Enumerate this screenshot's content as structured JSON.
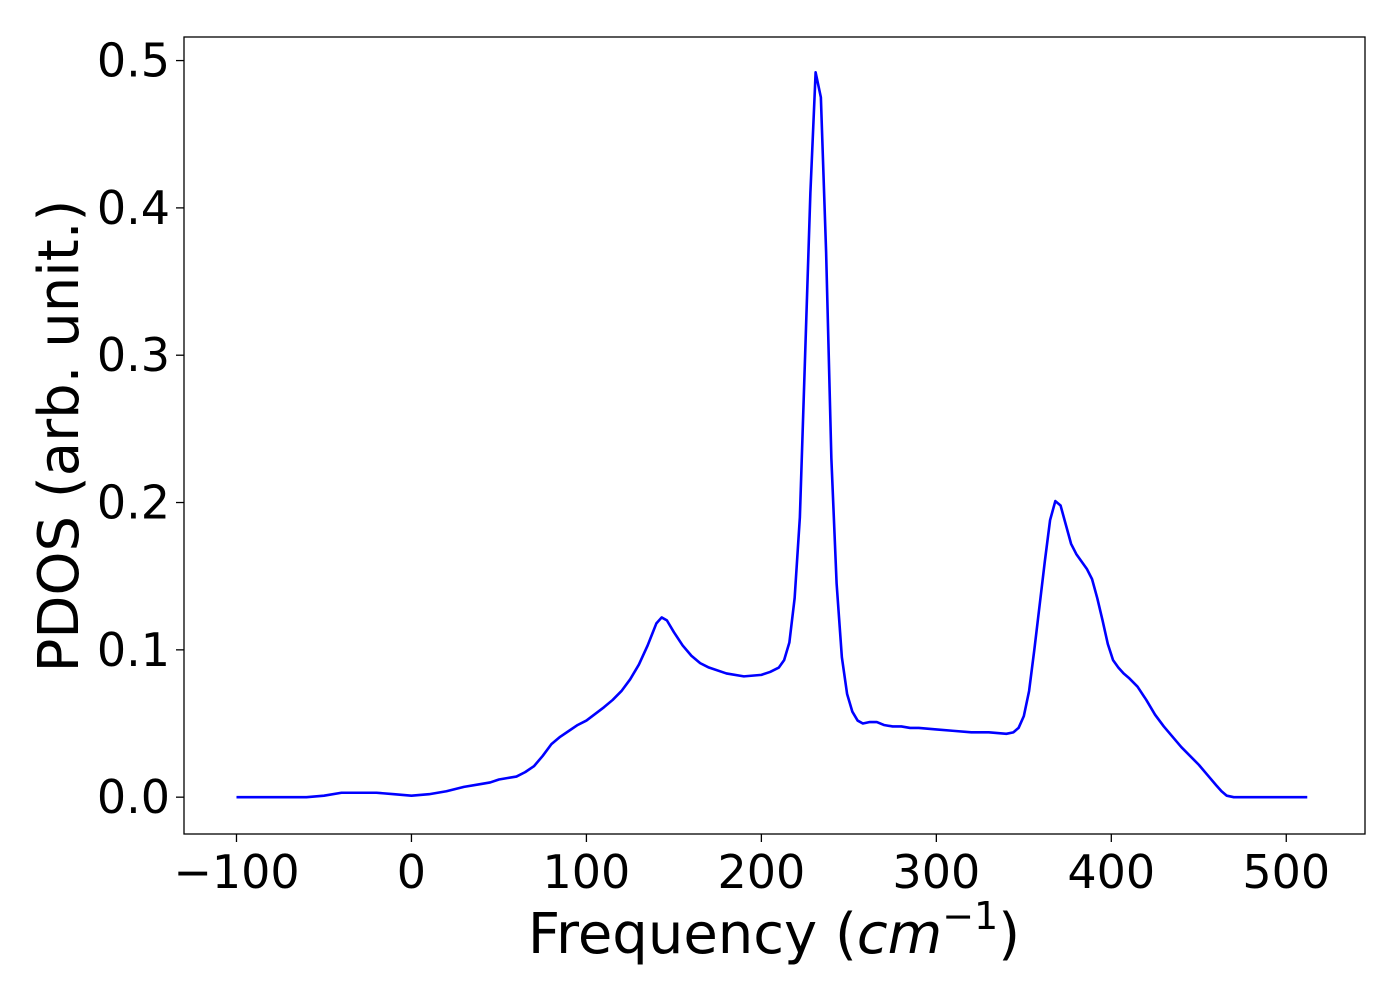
{
  "chart_data": {
    "type": "line",
    "title": "",
    "xlabel": "Frequency ",
    "xlabel_math": {
      "open": "(",
      "var": "cm",
      "sup": "−1",
      "close": ")"
    },
    "ylabel": "PDOS (arb. unit.)",
    "xlim": [
      -130,
      545
    ],
    "ylim": [
      -0.025,
      0.516
    ],
    "xticks": [
      -100,
      0,
      100,
      200,
      300,
      400,
      500
    ],
    "xtick_labels": [
      "−100",
      "0",
      "100",
      "200",
      "300",
      "400",
      "500"
    ],
    "yticks": [
      0.0,
      0.1,
      0.2,
      0.3,
      0.4,
      0.5
    ],
    "ytick_labels": [
      "0.0",
      "0.1",
      "0.2",
      "0.3",
      "0.4",
      "0.5"
    ],
    "grid": false,
    "series": [
      {
        "color": "#0000ff",
        "x": [
          -100,
          -60,
          -50,
          -40,
          -35,
          -25,
          -20,
          -10,
          0,
          10,
          20,
          30,
          40,
          45,
          50,
          55,
          60,
          65,
          70,
          75,
          80,
          85,
          90,
          95,
          100,
          110,
          115,
          120,
          125,
          130,
          135,
          140,
          143,
          146,
          150,
          155,
          160,
          165,
          170,
          180,
          190,
          200,
          205,
          210,
          213,
          216,
          219,
          222,
          225,
          228,
          231,
          234,
          237,
          240,
          243,
          246,
          249,
          252,
          255,
          258,
          262,
          266,
          270,
          275,
          280,
          285,
          290,
          300,
          310,
          320,
          330,
          340,
          344,
          347,
          350,
          353,
          356,
          359,
          362,
          365,
          368,
          371,
          374,
          377,
          380,
          383,
          386,
          389,
          392,
          395,
          398,
          401,
          404,
          407,
          410,
          415,
          420,
          425,
          430,
          440,
          450,
          455,
          460,
          463,
          466,
          470,
          480,
          500,
          512
        ],
        "y": [
          0.0,
          0.0,
          0.001,
          0.003,
          0.003,
          0.003,
          0.003,
          0.002,
          0.001,
          0.002,
          0.004,
          0.007,
          0.009,
          0.01,
          0.012,
          0.013,
          0.014,
          0.017,
          0.021,
          0.028,
          0.036,
          0.041,
          0.045,
          0.049,
          0.052,
          0.061,
          0.066,
          0.072,
          0.08,
          0.09,
          0.103,
          0.118,
          0.122,
          0.12,
          0.112,
          0.103,
          0.096,
          0.091,
          0.088,
          0.084,
          0.082,
          0.083,
          0.085,
          0.088,
          0.093,
          0.105,
          0.135,
          0.19,
          0.3,
          0.41,
          0.492,
          0.475,
          0.37,
          0.23,
          0.145,
          0.095,
          0.07,
          0.058,
          0.052,
          0.05,
          0.051,
          0.051,
          0.049,
          0.048,
          0.048,
          0.047,
          0.047,
          0.046,
          0.045,
          0.044,
          0.044,
          0.043,
          0.044,
          0.047,
          0.055,
          0.072,
          0.1,
          0.13,
          0.16,
          0.188,
          0.201,
          0.198,
          0.185,
          0.172,
          0.165,
          0.16,
          0.155,
          0.148,
          0.135,
          0.12,
          0.104,
          0.093,
          0.088,
          0.084,
          0.081,
          0.075,
          0.066,
          0.056,
          0.048,
          0.034,
          0.022,
          0.015,
          0.008,
          0.004,
          0.001,
          0.0,
          0.0,
          0.0,
          0.0
        ]
      }
    ]
  }
}
